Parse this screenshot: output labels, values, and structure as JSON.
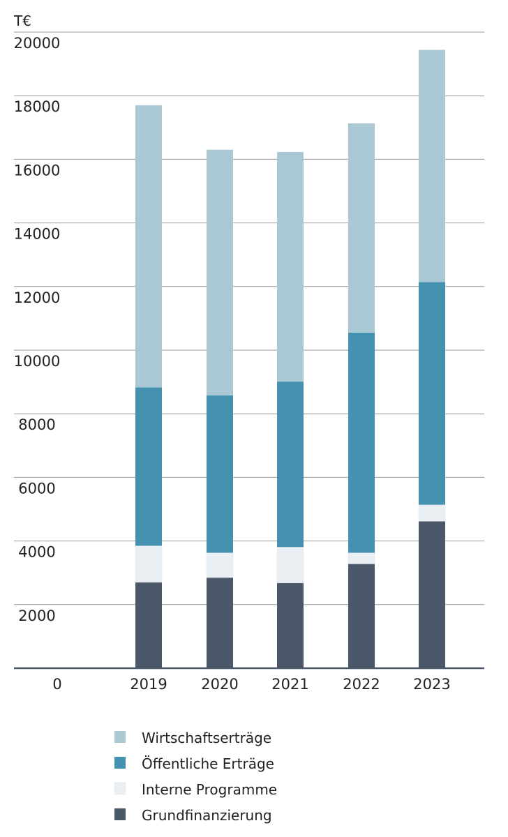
{
  "chart_data": {
    "type": "bar",
    "stacked": true,
    "unit_label": "T€",
    "title": "",
    "xlabel": "",
    "ylabel": "",
    "categories": [
      "2019",
      "2020",
      "2021",
      "2022",
      "2023"
    ],
    "ylim": [
      0,
      20000
    ],
    "yticks": [
      "20000",
      "18000",
      "16000",
      "14000",
      "12000",
      "10000",
      "8000",
      "6000",
      "4000",
      "2000",
      "0"
    ],
    "grid": true,
    "legend_position": "bottom",
    "series": [
      {
        "name": "Grundfinanzierung",
        "color": "#4a586a",
        "values": [
          2700,
          2850,
          2680,
          3280,
          4620
        ]
      },
      {
        "name": "Interne Programme",
        "color": "#eaeff4",
        "values": [
          1150,
          780,
          1130,
          350,
          520
        ]
      },
      {
        "name": "Öffentliche Erträge",
        "color": "#4591b0",
        "values": [
          4980,
          4950,
          5200,
          6920,
          7000
        ]
      },
      {
        "name": "Wirtschaftserträge",
        "color": "#a9c8d4",
        "values": [
          8870,
          7720,
          7220,
          6580,
          7300
        ]
      }
    ]
  }
}
